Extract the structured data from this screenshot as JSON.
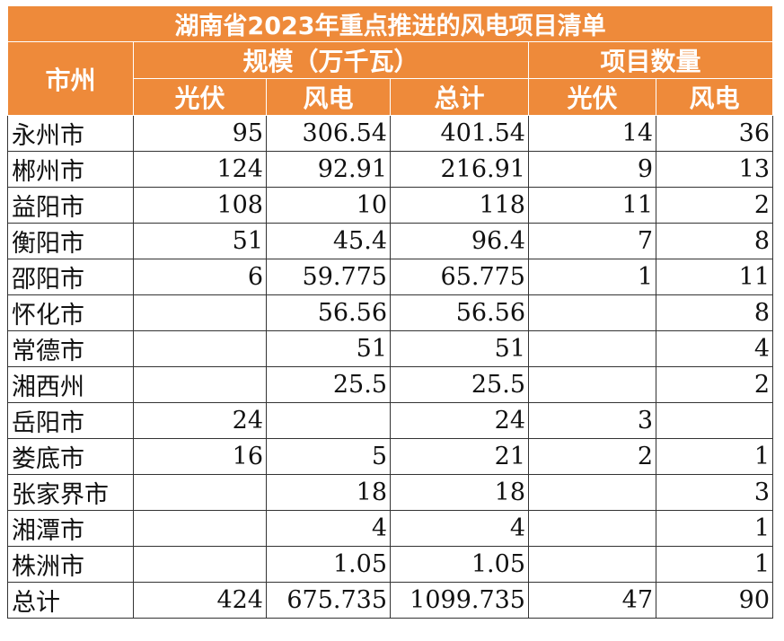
{
  "title": "湖南省2023年重点推进的风电项目清单",
  "headers": {
    "city": "市州",
    "scale_group": "规模（万千瓦）",
    "count_group": "项目数量",
    "solar": "光伏",
    "wind": "风电",
    "total": "总计",
    "count_solar": "光伏",
    "count_wind": "风电"
  },
  "rows": [
    [
      "永州市",
      "95",
      "306.54",
      "401.54",
      "14",
      "36"
    ],
    [
      "郴州市",
      "124",
      "92.91",
      "216.91",
      "9",
      "13"
    ],
    [
      "益阳市",
      "108",
      "10",
      "118",
      "11",
      "2"
    ],
    [
      "衡阳市",
      "51",
      "45.4",
      "96.4",
      "7",
      "8"
    ],
    [
      "邵阳市",
      "6",
      "59.775",
      "65.775",
      "1",
      "11"
    ],
    [
      "怀化市",
      "",
      "56.56",
      "56.56",
      "",
      "8"
    ],
    [
      "常德市",
      "",
      "51",
      "51",
      "",
      "4"
    ],
    [
      "湘西州",
      "",
      "25.5",
      "25.5",
      "",
      "2"
    ],
    [
      "岳阳市",
      "24",
      "",
      "24",
      "3",
      ""
    ],
    [
      "娄底市",
      "16",
      "5",
      "21",
      "2",
      "1"
    ],
    [
      "张家界市",
      "",
      "18",
      "18",
      "",
      "3"
    ],
    [
      "湘潭市",
      "",
      "4",
      "4",
      "",
      "1"
    ],
    [
      "株洲市",
      "",
      "1.05",
      "1.05",
      "",
      "1"
    ],
    [
      "总计",
      "424",
      "675.735",
      "1099.735",
      "47",
      "90"
    ]
  ],
  "colors": {
    "header_bg": "#ee8a3a",
    "header_text": "#ffffff",
    "border": "#333333"
  }
}
